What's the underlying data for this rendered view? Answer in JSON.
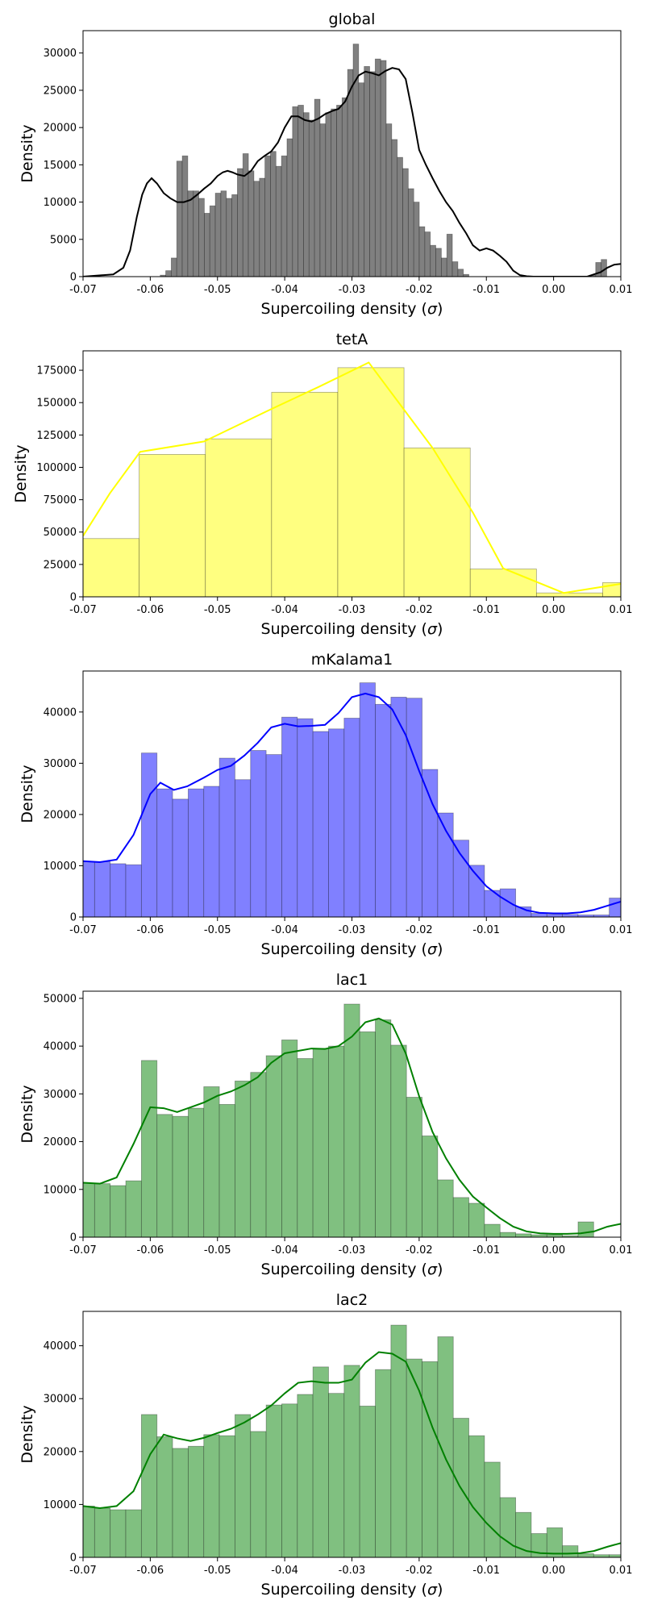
{
  "chart_data": [
    {
      "type": "bar",
      "title": "global",
      "xlabel": "Supercoiling density (σ)",
      "ylabel": "Density",
      "xlim": [
        -0.07,
        0.01
      ],
      "ylim": [
        0,
        33000
      ],
      "xticks": [
        "-0.07",
        "-0.06",
        "-0.05",
        "-0.04",
        "-0.03",
        "-0.02",
        "-0.01",
        "0.00",
        "0.01"
      ],
      "yticks": [
        0,
        5000,
        10000,
        15000,
        20000,
        25000,
        30000
      ],
      "bar_color": "#808080",
      "line_color": "#000000",
      "bins": {
        "start": -0.07,
        "width": 0.00082,
        "values": [
          0,
          0,
          0,
          0,
          0,
          0,
          0,
          0,
          0,
          0,
          0,
          0,
          0,
          0,
          200,
          800,
          2500,
          15500,
          16200,
          11500,
          11500,
          10500,
          8500,
          9500,
          11200,
          11500,
          10500,
          11000,
          14500,
          16500,
          14200,
          12800,
          13200,
          16200,
          16800,
          14800,
          16200,
          18500,
          22800,
          23000,
          22000,
          21000,
          23800,
          20500,
          22000,
          22500,
          23000,
          24000,
          27800,
          31200,
          26000,
          28200,
          27500,
          29200,
          29000,
          20500,
          18400,
          16000,
          14500,
          11800,
          10000,
          6700,
          6000,
          4200,
          3800,
          2500,
          5700,
          2000,
          1000,
          300,
          0,
          0,
          0,
          0,
          0,
          0,
          0,
          0,
          0,
          0,
          0,
          0,
          0,
          0,
          0,
          0,
          0,
          0,
          0,
          0,
          0,
          0,
          200,
          1900,
          2300
        ]
      },
      "kde": {
        "x": [
          -0.07,
          -0.0655,
          -0.064,
          -0.063,
          -0.062,
          -0.0612,
          -0.0605,
          -0.0598,
          -0.059,
          -0.058,
          -0.057,
          -0.056,
          -0.055,
          -0.054,
          -0.053,
          -0.052,
          -0.051,
          -0.05,
          -0.0492,
          -0.0485,
          -0.0478,
          -0.047,
          -0.046,
          -0.045,
          -0.044,
          -0.043,
          -0.042,
          -0.041,
          -0.04,
          -0.039,
          -0.038,
          -0.037,
          -0.036,
          -0.035,
          -0.034,
          -0.033,
          -0.032,
          -0.031,
          -0.03,
          -0.029,
          -0.028,
          -0.027,
          -0.026,
          -0.025,
          -0.024,
          -0.023,
          -0.022,
          -0.021,
          -0.02,
          -0.019,
          -0.018,
          -0.017,
          -0.016,
          -0.015,
          -0.014,
          -0.013,
          -0.012,
          -0.011,
          -0.01,
          -0.009,
          -0.008,
          -0.007,
          -0.006,
          -0.005,
          -0.004,
          -0.003,
          -0.002,
          -0.001,
          0.0,
          0.001,
          0.002,
          0.003,
          0.004,
          0.005,
          0.006,
          0.007,
          0.008,
          0.009,
          0.01
        ],
        "y": [
          0,
          300,
          1200,
          3500,
          8000,
          11000,
          12500,
          13200,
          12500,
          11200,
          10500,
          10000,
          10000,
          10300,
          11000,
          11800,
          12500,
          13500,
          14000,
          14200,
          14000,
          13700,
          13500,
          14200,
          15500,
          16200,
          16800,
          18000,
          20000,
          21500,
          21500,
          21000,
          20800,
          21200,
          21800,
          22200,
          22500,
          23500,
          25500,
          27000,
          27500,
          27300,
          27000,
          27600,
          28000,
          27800,
          26500,
          22000,
          17000,
          15000,
          13200,
          11500,
          10000,
          8800,
          7200,
          5800,
          4200,
          3500,
          3800,
          3500,
          2800,
          2000,
          800,
          200,
          50,
          0,
          0,
          0,
          0,
          0,
          0,
          0,
          0,
          0,
          300,
          600,
          1200,
          1600,
          1700
        ]
      }
    },
    {
      "type": "bar",
      "title": "tetA",
      "xlabel": "Supercoiling density (σ)",
      "ylabel": "Density",
      "xlim": [
        -0.07,
        0.01
      ],
      "ylim": [
        0,
        190000
      ],
      "xticks": [
        "-0.07",
        "-0.06",
        "-0.05",
        "-0.04",
        "-0.03",
        "-0.02",
        "-0.01",
        "0.00",
        "0.01"
      ],
      "yticks": [
        0,
        25000,
        50000,
        75000,
        100000,
        125000,
        150000,
        175000
      ],
      "bar_color": "#ffff80",
      "line_color": "#ffff00",
      "bins": {
        "start": -0.0715,
        "width": 0.00985,
        "values": [
          45000,
          110000,
          122000,
          158000,
          177000,
          115000,
          21500,
          3000,
          11000
        ]
      },
      "kde": {
        "x": [
          -0.07,
          -0.066,
          -0.0615,
          -0.052,
          -0.042,
          -0.035,
          -0.0275,
          -0.018,
          -0.012,
          -0.0075,
          0.0015,
          0.01
        ],
        "y": [
          47000,
          80000,
          112000,
          120000,
          145000,
          162000,
          181000,
          115000,
          65000,
          22000,
          3000,
          10000
        ]
      }
    },
    {
      "type": "bar",
      "title": "mKalama1",
      "xlabel": "Supercoiling density (σ)",
      "ylabel": "Density",
      "xlim": [
        -0.07,
        0.01
      ],
      "ylim": [
        0,
        48000
      ],
      "xticks": [
        "-0.07",
        "-0.06",
        "-0.05",
        "-0.04",
        "-0.03",
        "-0.02",
        "-0.01",
        "0.00",
        "0.01"
      ],
      "yticks": [
        0,
        10000,
        20000,
        30000,
        40000
      ],
      "bar_color": "#8080ff",
      "line_color": "#0000ff",
      "bins": {
        "start": -0.0706,
        "width": 0.00232,
        "values": [
          10800,
          10800,
          10400,
          10200,
          32000,
          25000,
          23000,
          25000,
          25500,
          31000,
          26800,
          32500,
          31700,
          39000,
          38700,
          36200,
          36700,
          38800,
          45700,
          41500,
          42900,
          42700,
          28800,
          20300,
          15000,
          10100,
          5200,
          5500,
          2000,
          700,
          500,
          500,
          400,
          400,
          3700
        ]
      },
      "kde": {
        "x": [
          -0.07,
          -0.0675,
          -0.065,
          -0.0625,
          -0.06,
          -0.0585,
          -0.0565,
          -0.0545,
          -0.052,
          -0.05,
          -0.048,
          -0.046,
          -0.044,
          -0.042,
          -0.04,
          -0.038,
          -0.036,
          -0.034,
          -0.032,
          -0.03,
          -0.028,
          -0.026,
          -0.024,
          -0.022,
          -0.02,
          -0.018,
          -0.016,
          -0.014,
          -0.012,
          -0.01,
          -0.008,
          -0.006,
          -0.004,
          -0.002,
          0.0,
          0.002,
          0.004,
          0.006,
          0.008,
          0.01
        ],
        "y": [
          10900,
          10700,
          11200,
          16000,
          24000,
          26200,
          24800,
          25500,
          27200,
          28700,
          29500,
          31500,
          34000,
          37000,
          37700,
          37200,
          37300,
          37500,
          39800,
          42900,
          43600,
          42900,
          40500,
          35500,
          28500,
          22000,
          16800,
          12500,
          9000,
          6000,
          4000,
          2400,
          1300,
          800,
          700,
          700,
          900,
          1400,
          2200,
          3000
        ]
      }
    },
    {
      "type": "bar",
      "title": "lac1",
      "xlabel": "Supercoiling density (σ)",
      "ylabel": "Density",
      "xlim": [
        -0.07,
        0.01
      ],
      "ylim": [
        0,
        51500
      ],
      "xticks": [
        "-0.07",
        "-0.06",
        "-0.05",
        "-0.04",
        "-0.03",
        "-0.02",
        "-0.01",
        "0.00",
        "0.01"
      ],
      "yticks": [
        0,
        10000,
        20000,
        30000,
        40000,
        50000
      ],
      "bar_color": "#80c080",
      "line_color": "#008000",
      "bins": {
        "start": -0.0706,
        "width": 0.00232,
        "values": [
          11300,
          11200,
          10800,
          11800,
          37000,
          25700,
          25300,
          27000,
          31500,
          27800,
          32700,
          34500,
          38000,
          41300,
          37400,
          39500,
          40000,
          48800,
          43000,
          45500,
          40200,
          29300,
          21200,
          12000,
          8300,
          7100,
          2700,
          1000,
          700,
          500,
          500,
          300,
          3200
        ]
      },
      "kde": {
        "x": [
          -0.07,
          -0.0675,
          -0.065,
          -0.0625,
          -0.06,
          -0.058,
          -0.056,
          -0.054,
          -0.052,
          -0.05,
          -0.048,
          -0.046,
          -0.044,
          -0.042,
          -0.04,
          -0.038,
          -0.036,
          -0.034,
          -0.032,
          -0.03,
          -0.028,
          -0.026,
          -0.024,
          -0.022,
          -0.02,
          -0.018,
          -0.016,
          -0.014,
          -0.012,
          -0.01,
          -0.008,
          -0.006,
          -0.004,
          -0.002,
          0.0,
          0.002,
          0.004,
          0.006,
          0.008,
          0.01
        ],
        "y": [
          11400,
          11200,
          12500,
          19500,
          27200,
          27000,
          26200,
          27200,
          28200,
          29600,
          30500,
          31800,
          33500,
          36500,
          38500,
          39000,
          39500,
          39400,
          40000,
          42000,
          45000,
          45800,
          44500,
          38500,
          29500,
          22000,
          16500,
          12000,
          8500,
          6200,
          4000,
          2200,
          1200,
          800,
          700,
          700,
          800,
          1200,
          2200,
          2800
        ]
      }
    },
    {
      "type": "bar",
      "title": "lac2",
      "xlabel": "Supercoiling density (σ)",
      "ylabel": "Density",
      "xlim": [
        -0.07,
        0.01
      ],
      "ylim": [
        0,
        46500
      ],
      "xticks": [
        "-0.07",
        "-0.06",
        "-0.05",
        "-0.04",
        "-0.03",
        "-0.02",
        "-0.01",
        "0.00",
        "0.01"
      ],
      "yticks": [
        0,
        10000,
        20000,
        30000,
        40000
      ],
      "bar_color": "#80c080",
      "line_color": "#008000",
      "bins": {
        "start": -0.0706,
        "width": 0.00232,
        "values": [
          9700,
          9300,
          9000,
          9000,
          27000,
          22800,
          20600,
          21000,
          23200,
          23000,
          27000,
          23800,
          28800,
          29000,
          30800,
          36000,
          31000,
          36300,
          28600,
          35500,
          43900,
          37500,
          37000,
          41700,
          26300,
          23000,
          18000,
          11300,
          8500,
          4500,
          5600,
          2200,
          700,
          500,
          500,
          400,
          3500
        ]
      },
      "kde": {
        "x": [
          -0.07,
          -0.0675,
          -0.065,
          -0.0625,
          -0.06,
          -0.058,
          -0.056,
          -0.054,
          -0.052,
          -0.05,
          -0.048,
          -0.046,
          -0.044,
          -0.042,
          -0.04,
          -0.038,
          -0.036,
          -0.034,
          -0.032,
          -0.03,
          -0.028,
          -0.026,
          -0.024,
          -0.022,
          -0.02,
          -0.018,
          -0.016,
          -0.014,
          -0.012,
          -0.01,
          -0.008,
          -0.006,
          -0.004,
          -0.002,
          0.0,
          0.002,
          0.004,
          0.006,
          0.008,
          0.01
        ],
        "y": [
          9700,
          9300,
          9700,
          12500,
          19500,
          23200,
          22500,
          22000,
          22600,
          23500,
          24300,
          25500,
          27000,
          28700,
          31000,
          33000,
          33300,
          33000,
          33000,
          33600,
          36800,
          38800,
          38500,
          37000,
          31500,
          24500,
          18500,
          13500,
          9500,
          6500,
          4000,
          2200,
          1200,
          800,
          700,
          700,
          800,
          1200,
          2000,
          2700
        ]
      }
    }
  ]
}
